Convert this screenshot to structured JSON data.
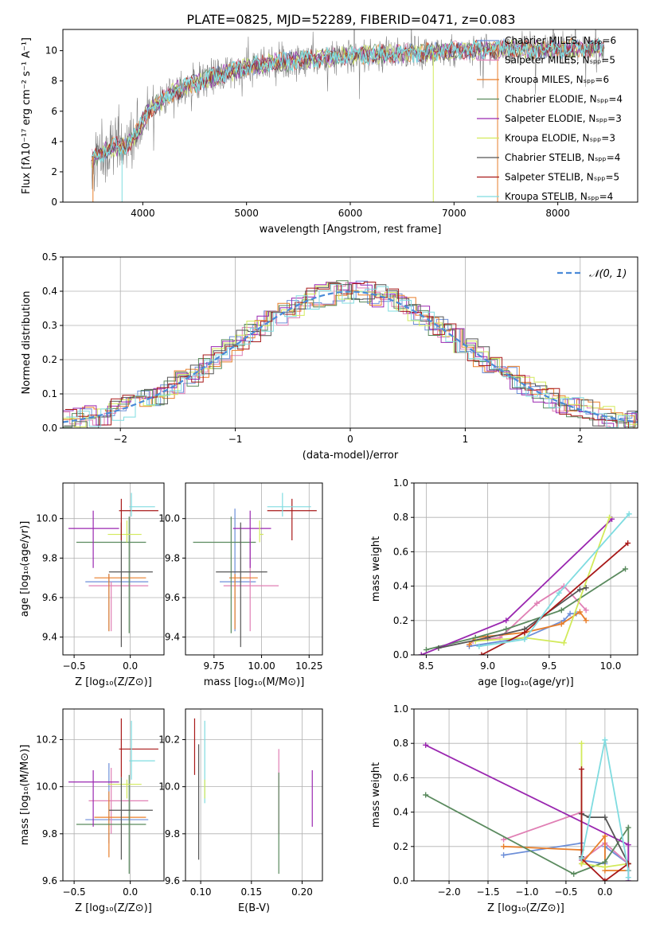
{
  "title": "PLATE=0825, MJD=52289, FIBERID=0471, z=0.083",
  "colors": {
    "chabrier_miles": "#6c8ed8",
    "salpeter_miles": "#e07fb4",
    "kroupa_miles": "#e87e2a",
    "chabrier_elodie": "#5a8a5e",
    "salpeter_elodie": "#9a27b0",
    "kroupa_elodie": "#d2ea5a",
    "chabrier_stelib": "#555555",
    "salpeter_stelib": "#a81818",
    "kroupa_stelib": "#7fdce0",
    "data": "#808080",
    "gaussian": "#4a8ad8"
  },
  "chart_data": [
    {
      "type": "line",
      "panel": "spectrum",
      "xlabel": "wavelength [Angstrom, rest frame]",
      "ylabel": "Flux [fλ10⁻¹⁷ erg cm⁻² s⁻¹ A⁻¹]",
      "xlim": [
        3230,
        8770
      ],
      "ylim": [
        0,
        11.4
      ],
      "xticks": [
        "4000",
        "5000",
        "6000",
        "7000",
        "8000"
      ],
      "yticks": [
        "0",
        "2",
        "4",
        "6",
        "8",
        "10"
      ],
      "legend_position": "top-right",
      "legend": [
        "Chabrier MILES, Nₛₚₚ=6",
        "Salpeter MILES, Nₛₚₚ=5",
        "Kroupa MILES, Nₛₚₚ=6",
        "Chabrier ELODIE, Nₛₚₚ=4",
        "Salpeter ELODIE, Nₛₚₚ=3",
        "Kroupa ELODIE, Nₛₚₚ=3",
        "Chabrier STELIB, Nₛₚₚ=4",
        "Salpeter STELIB, Nₛₚₚ=5",
        "Kroupa STELIB, Nₛₚₚ=4"
      ],
      "continuum": {
        "x": [
          3500,
          3700,
          3850,
          3950,
          4050,
          4300,
          4500,
          4700,
          5000,
          5300,
          5600,
          6000,
          6500,
          7000,
          7500,
          8000,
          8500
        ],
        "y": [
          2.8,
          3.6,
          3.8,
          4.6,
          6.0,
          7.3,
          7.8,
          8.3,
          8.9,
          9.2,
          9.4,
          9.7,
          9.8,
          10.0,
          10.1,
          10.1,
          10.2
        ]
      }
    },
    {
      "type": "line",
      "panel": "residual-histogram",
      "xlabel": "(data-model)/error",
      "ylabel": "Normed distribution",
      "xlim": [
        -2.5,
        2.5
      ],
      "ylim": [
        0,
        0.5
      ],
      "xticks": [
        "−2",
        "−1",
        "0",
        "1",
        "2"
      ],
      "yticks": [
        "0.0",
        "0.1",
        "0.2",
        "0.3",
        "0.4",
        "0.5"
      ],
      "grid": true,
      "legend_position": "top-right",
      "series": [
        {
          "name": "𝒩(0, 1)",
          "style": "dashed",
          "mu": 0,
          "sigma": 1
        }
      ]
    },
    {
      "type": "scatter",
      "panel": "Z-vs-age",
      "xlabel": "Z [log₁₀(Z/Z⊙)]",
      "ylabel": "age  [log₁₀(age/yr)]",
      "xlim": [
        -0.6,
        0.3
      ],
      "ylim": [
        9.31,
        10.18
      ],
      "xticks": [
        "−0.5",
        "0.0"
      ],
      "yticks": [
        "9.4",
        "9.6",
        "9.8",
        "10.0"
      ],
      "grid": true,
      "points": [
        {
          "c": "chabrier_miles",
          "x": -0.19,
          "y": 9.68,
          "xe": [
            -0.4,
            0.16
          ],
          "ye": [
            9.43,
            9.72
          ]
        },
        {
          "c": "salpeter_miles",
          "x": -0.17,
          "y": 9.66,
          "xe": [
            -0.37,
            0.16
          ],
          "ye": [
            9.43,
            9.68
          ]
        },
        {
          "c": "kroupa_miles",
          "x": -0.19,
          "y": 9.7,
          "xe": [
            -0.32,
            0.14
          ],
          "ye": [
            9.43,
            9.72
          ]
        },
        {
          "c": "chabrier_elodie",
          "x": -0.01,
          "y": 9.88,
          "xe": [
            -0.48,
            0.14
          ],
          "ye": [
            9.42,
            10.01
          ]
        },
        {
          "c": "salpeter_elodie",
          "x": -0.33,
          "y": 9.95,
          "xe": [
            -0.55,
            -0.1
          ],
          "ye": [
            9.75,
            10.04
          ]
        },
        {
          "c": "kroupa_elodie",
          "x": -0.03,
          "y": 9.92,
          "xe": [
            -0.2,
            0.1
          ],
          "ye": [
            9.88,
            9.99
          ]
        },
        {
          "c": "chabrier_stelib",
          "x": -0.08,
          "y": 9.73,
          "xe": [
            -0.19,
            0.2
          ],
          "ye": [
            9.35,
            9.98
          ]
        },
        {
          "c": "salpeter_stelib",
          "x": -0.08,
          "y": 10.04,
          "xe": [
            -0.1,
            0.25
          ],
          "ye": [
            9.89,
            10.1
          ]
        },
        {
          "c": "kroupa_stelib",
          "x": 0.01,
          "y": 10.06,
          "xe": [
            -0.01,
            0.22
          ],
          "ye": [
            10.01,
            10.13
          ]
        }
      ]
    },
    {
      "type": "scatter",
      "panel": "mass-vs-age",
      "xlabel": "mass [log₁₀(M/M⊙)]",
      "ylabel": "",
      "xlim": [
        9.6,
        10.32
      ],
      "ylim": [
        9.31,
        10.18
      ],
      "xticks": [
        "9.75",
        "10.00",
        "10.25"
      ],
      "yticks": [
        "9.4",
        "9.6",
        "9.8",
        "10.0"
      ],
      "grid": true,
      "points": [
        {
          "c": "chabrier_miles",
          "x": 9.86,
          "y": 9.68,
          "xe": [
            9.78,
            9.97
          ],
          "ye": [
            9.43,
            10.05
          ]
        },
        {
          "c": "salpeter_miles",
          "x": 9.94,
          "y": 9.66,
          "xe": [
            9.8,
            10.09
          ],
          "ye": [
            9.43,
            9.9
          ]
        },
        {
          "c": "kroupa_miles",
          "x": 9.86,
          "y": 9.7,
          "xe": [
            9.83,
            9.98
          ],
          "ye": [
            9.44,
            9.72
          ]
        },
        {
          "c": "chabrier_elodie",
          "x": 9.84,
          "y": 9.88,
          "xe": [
            9.64,
            9.97
          ],
          "ye": [
            9.42,
            10.01
          ]
        },
        {
          "c": "salpeter_elodie",
          "x": 9.94,
          "y": 9.95,
          "xe": [
            9.85,
            10.05
          ],
          "ye": [
            9.75,
            10.04
          ]
        },
        {
          "c": "kroupa_elodie",
          "x": 9.99,
          "y": 9.92,
          "xe": [
            9.99,
            10.01
          ],
          "ye": [
            9.88,
            9.99
          ]
        },
        {
          "c": "chabrier_stelib",
          "x": 9.89,
          "y": 9.73,
          "xe": [
            9.76,
            10.03
          ],
          "ye": [
            9.35,
            9.98
          ]
        },
        {
          "c": "salpeter_stelib",
          "x": 10.16,
          "y": 10.04,
          "xe": [
            10.03,
            10.29
          ],
          "ye": [
            9.89,
            10.1
          ]
        },
        {
          "c": "kroupa_stelib",
          "x": 10.11,
          "y": 10.06,
          "xe": [
            10.03,
            10.26
          ],
          "ye": [
            10.01,
            10.13
          ]
        }
      ]
    },
    {
      "type": "line",
      "panel": "age-vs-mass-weight",
      "xlabel": "age  [log₁₀(age/yr)]",
      "ylabel": "mass weight",
      "xlim": [
        8.4,
        10.22
      ],
      "ylim": [
        0,
        1.0
      ],
      "xticks": [
        "8.5",
        "9.0",
        "9.5",
        "10.0"
      ],
      "yticks": [
        "0.0",
        "0.2",
        "0.4",
        "0.6",
        "0.8",
        "1.0"
      ],
      "grid": true,
      "series": [
        {
          "c": "chabrier_miles",
          "x": [
            8.85,
            9.3,
            9.62,
            9.67,
            9.72
          ],
          "y": [
            0.05,
            0.1,
            0.2,
            0.24,
            0.24
          ]
        },
        {
          "c": "salpeter_miles",
          "x": [
            8.88,
            9.1,
            9.4,
            9.62,
            9.8
          ],
          "y": [
            0.08,
            0.1,
            0.3,
            0.4,
            0.26
          ]
        },
        {
          "c": "kroupa_miles",
          "x": [
            8.85,
            8.9,
            9.3,
            9.6,
            9.75,
            9.8
          ],
          "y": [
            0.06,
            0.1,
            0.13,
            0.18,
            0.25,
            0.2
          ]
        },
        {
          "c": "chabrier_elodie",
          "x": [
            8.5,
            8.9,
            9.15,
            9.6,
            10.12
          ],
          "y": [
            0.03,
            0.1,
            0.15,
            0.26,
            0.5
          ]
        },
        {
          "c": "salpeter_elodie",
          "x": [
            8.46,
            9.15,
            10.01
          ],
          "y": [
            0.0,
            0.2,
            0.79
          ]
        },
        {
          "c": "kroupa_elodie",
          "x": [
            8.9,
            9.3,
            9.62,
            9.99
          ],
          "y": [
            0.08,
            0.1,
            0.07,
            0.8
          ]
        },
        {
          "c": "chabrier_stelib",
          "x": [
            8.6,
            9.0,
            9.3,
            9.75,
            9.8
          ],
          "y": [
            0.04,
            0.1,
            0.15,
            0.38,
            0.39
          ]
        },
        {
          "c": "salpeter_stelib",
          "x": [
            8.95,
            9.3,
            10.14
          ],
          "y": [
            0.0,
            0.13,
            0.65
          ]
        },
        {
          "c": "kroupa_stelib",
          "x": [
            8.93,
            9.3,
            9.58,
            10.15
          ],
          "y": [
            0.05,
            0.09,
            0.36,
            0.82
          ]
        }
      ]
    },
    {
      "type": "scatter",
      "panel": "Z-vs-mass",
      "xlabel": "Z [log₁₀(Z/Z⊙)]",
      "ylabel": "mass [log₁₀(M/M⊙)]",
      "xlim": [
        -0.6,
        0.3
      ],
      "ylim": [
        9.6,
        10.33
      ],
      "xticks": [
        "−0.5",
        "0.0"
      ],
      "yticks": [
        "9.6",
        "9.8",
        "10.0",
        "10.2"
      ],
      "grid": true,
      "points": [
        {
          "c": "chabrier_miles",
          "x": -0.19,
          "y": 9.86,
          "xe": [
            -0.4,
            0.16
          ],
          "ye": [
            9.76,
            10.1
          ]
        },
        {
          "c": "salpeter_miles",
          "x": -0.17,
          "y": 9.94,
          "xe": [
            -0.37,
            0.16
          ],
          "ye": [
            9.8,
            10.08
          ]
        },
        {
          "c": "kroupa_miles",
          "x": -0.19,
          "y": 9.87,
          "xe": [
            -0.32,
            0.14
          ],
          "ye": [
            9.7,
            9.98
          ]
        },
        {
          "c": "chabrier_elodie",
          "x": -0.01,
          "y": 9.84,
          "xe": [
            -0.48,
            0.14
          ],
          "ye": [
            9.63,
            10.05
          ]
        },
        {
          "c": "salpeter_elodie",
          "x": -0.33,
          "y": 10.02,
          "xe": [
            -0.55,
            -0.1
          ],
          "ye": [
            9.83,
            10.07
          ]
        },
        {
          "c": "kroupa_elodie",
          "x": -0.03,
          "y": 10.01,
          "xe": [
            -0.2,
            0.1
          ],
          "ye": [
            9.95,
            10.03
          ]
        },
        {
          "c": "chabrier_stelib",
          "x": -0.08,
          "y": 9.9,
          "xe": [
            -0.19,
            0.2
          ],
          "ye": [
            9.69,
            10.04
          ]
        },
        {
          "c": "salpeter_stelib",
          "x": -0.08,
          "y": 10.16,
          "xe": [
            -0.1,
            0.25
          ],
          "ye": [
            10.04,
            10.29
          ]
        },
        {
          "c": "kroupa_stelib",
          "x": 0.01,
          "y": 10.11,
          "xe": [
            -0.01,
            0.22
          ],
          "ye": [
            10.03,
            10.28
          ]
        }
      ]
    },
    {
      "type": "scatter",
      "panel": "ebv-vs-mass",
      "xlabel": "E(B-V)",
      "ylabel": "",
      "xlim": [
        0.085,
        0.22
      ],
      "ylim": [
        9.6,
        10.33
      ],
      "xticks": [
        "0.10",
        "0.15",
        "0.20"
      ],
      "yticks": [
        "9.6",
        "9.8",
        "10.0",
        "10.2"
      ],
      "grid": true,
      "points": [
        {
          "c": "salpeter_stelib",
          "x": 0.094,
          "y": 10.17,
          "ye": [
            10.05,
            10.29
          ]
        },
        {
          "c": "chabrier_stelib",
          "x": 0.098,
          "y": 9.9,
          "ye": [
            9.69,
            10.18
          ]
        },
        {
          "c": "kroupa_stelib",
          "x": 0.104,
          "y": 10.11,
          "ye": [
            9.93,
            10.28
          ]
        },
        {
          "c": "kroupa_elodie",
          "x": 0.104,
          "y": 10.01,
          "ye": [
            9.95,
            10.03
          ]
        },
        {
          "c": "salpeter_miles",
          "x": 0.177,
          "y": 9.94,
          "ye": [
            9.8,
            10.16
          ]
        },
        {
          "c": "chabrier_elodie",
          "x": 0.177,
          "y": 9.84,
          "ye": [
            9.63,
            10.06
          ]
        },
        {
          "c": "salpeter_elodie",
          "x": 0.21,
          "y": 10.02,
          "ye": [
            9.83,
            10.07
          ]
        }
      ]
    },
    {
      "type": "line",
      "panel": "Z-vs-mass-weight",
      "xlabel": "Z [log₁₀(Z/Z⊙)]",
      "ylabel": "mass weight",
      "xlim": [
        -2.45,
        0.42
      ],
      "ylim": [
        0,
        1.0
      ],
      "xticks": [
        "−2.0",
        "−1.5",
        "−1.0",
        "−0.5",
        "0.0"
      ],
      "yticks": [
        "0.0",
        "0.2",
        "0.4",
        "0.6",
        "0.8",
        "1.0"
      ],
      "grid": true,
      "series": [
        {
          "c": "chabrier_miles",
          "x": [
            -1.3,
            -0.3,
            -0.3,
            0.0,
            0.0,
            0.3
          ],
          "y": [
            0.15,
            0.22,
            0.12,
            0.1,
            0.2,
            0.1
          ]
        },
        {
          "c": "salpeter_miles",
          "x": [
            -1.3,
            -0.3,
            -0.3,
            0.0,
            0.3
          ],
          "y": [
            0.24,
            0.4,
            0.12,
            0.22,
            0.1
          ]
        },
        {
          "c": "kroupa_miles",
          "x": [
            -1.3,
            -0.3,
            -0.3,
            0.0,
            0.0,
            0.3
          ],
          "y": [
            0.2,
            0.18,
            0.1,
            0.26,
            0.06,
            0.06
          ]
        },
        {
          "c": "chabrier_elodie",
          "x": [
            -2.3,
            -0.4,
            0.0,
            0.3,
            0.3
          ],
          "y": [
            0.5,
            0.04,
            0.11,
            0.31,
            0.1
          ]
        },
        {
          "c": "salpeter_elodie",
          "x": [
            -2.3,
            0.3,
            0.3
          ],
          "y": [
            0.79,
            0.21,
            0.0
          ]
        },
        {
          "c": "kroupa_elodie",
          "x": [
            -0.3,
            -0.3,
            0.0,
            0.3
          ],
          "y": [
            0.8,
            0.1,
            0.08,
            0.1
          ]
        },
        {
          "c": "chabrier_stelib",
          "x": [
            -0.3,
            -0.3,
            -0.2,
            0.0,
            0.3
          ],
          "y": [
            0.14,
            0.39,
            0.37,
            0.37,
            0.1
          ]
        },
        {
          "c": "salpeter_stelib",
          "x": [
            -0.3,
            -0.3,
            0.0,
            0.3,
            0.3
          ],
          "y": [
            0.65,
            0.13,
            0.0,
            0.1,
            0.06
          ]
        },
        {
          "c": "kroupa_stelib",
          "x": [
            -0.3,
            0.0,
            0.3,
            0.3
          ],
          "y": [
            0.13,
            0.82,
            0.06,
            0.02
          ]
        }
      ]
    }
  ]
}
